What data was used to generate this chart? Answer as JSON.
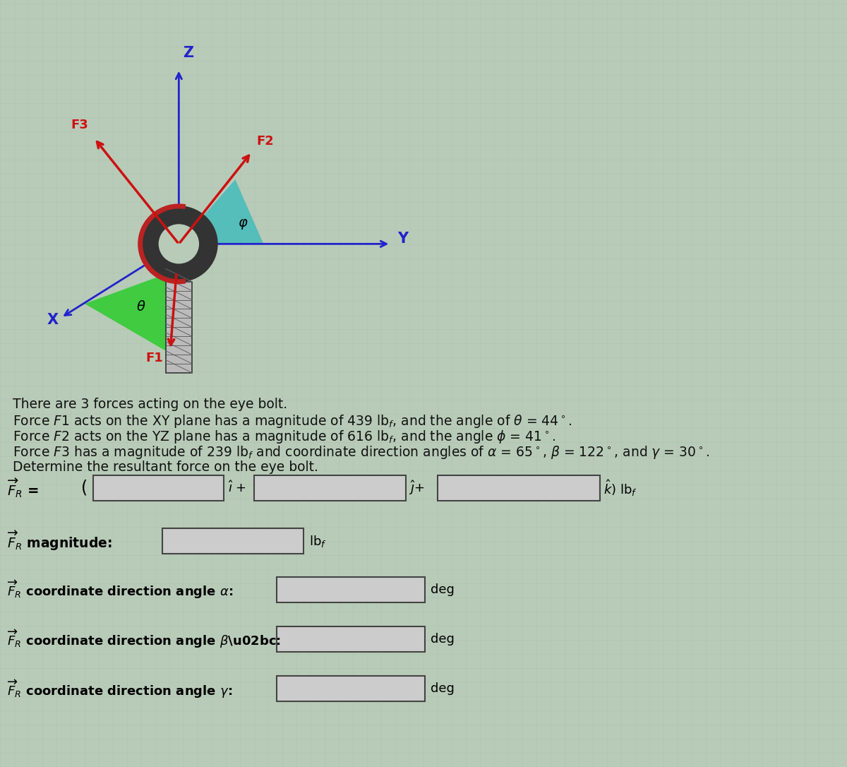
{
  "bg_color": "#b8cbb8",
  "fig_width": 12.0,
  "fig_height": 10.86,
  "axis_color": "#2222cc",
  "arrow_color": "#cc1111",
  "green_fill": "#33cc33",
  "teal_fill": "#44bbbb",
  "bolt_dark": "#333333",
  "bolt_red": "#bb2222",
  "bolt_light": "#999999",
  "box_color": "#cccccc",
  "box_edge": "#444444",
  "text_color": "#111111",
  "grid_color": "#a8bba8",
  "text_lines": [
    "There are 3 forces acting on the eye bolt.",
    "Force $\\underline{F}$1 acts on the XY plane has a magnitude of 439 lb$_f$, and the angle of $\\theta$ = 44°.",
    "Force $\\underline{F}$2 acts on the YZ plane has a magnitude of 616 lb$_f$, and the angle $\\phi$ = 41°.",
    "Force $\\underline{F}$3 has a magnitude of 239 lb$_f$ and coordinate direction angles of $\\alpha$ = 65°, $\\beta$ = 122°, and $\\gamma$ = 30°.",
    "Determine the resultant force on the eye bolt."
  ]
}
